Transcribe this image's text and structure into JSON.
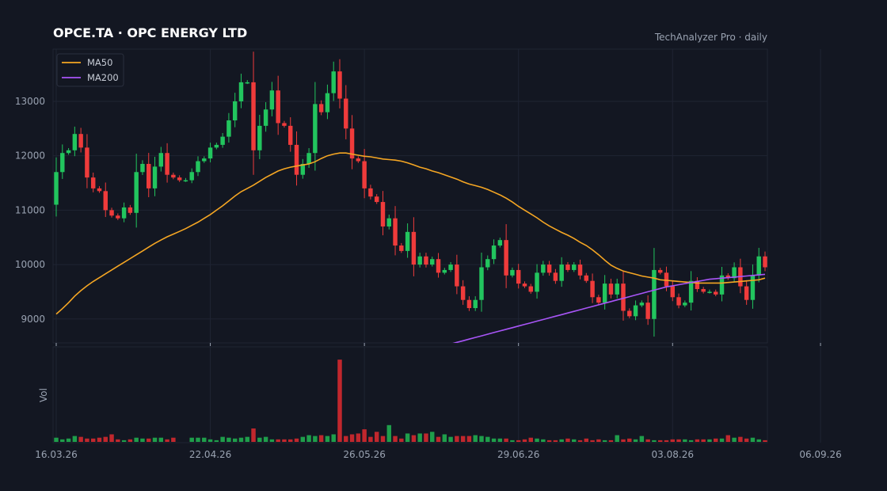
{
  "header": {
    "title": "OPCE.TA  ·  OPC ENERGY LTD",
    "source": "TechAnalyzer Pro · daily"
  },
  "colors": {
    "background": "#131722",
    "up": "#22c55e",
    "down": "#ef3b3b",
    "ma50": "#f5a623",
    "ma200": "#a855f7",
    "grid": "#1f2433",
    "text": "#9aa3b2"
  },
  "chart_data": {
    "type": "candlestick",
    "grid": true,
    "legend_position": "top-left",
    "ylim": [
      8560,
      13960
    ],
    "yticks": [
      9000,
      10000,
      11000,
      12000,
      13000
    ],
    "volume_ylabel": "Vol",
    "xtick_labels": [
      "16.03.26",
      "22.04.26",
      "26.05.26",
      "29.06.26",
      "03.08.26",
      "06.09.26"
    ],
    "xtick_index": [
      0,
      25,
      50,
      75,
      100,
      124
    ],
    "legend": [
      {
        "name": "MA50",
        "color": "#f5a623"
      },
      {
        "name": "MA200",
        "color": "#a855f7"
      }
    ],
    "close": [
      11700,
      12050,
      12100,
      12400,
      12150,
      11600,
      11400,
      11350,
      11000,
      10900,
      10850,
      11050,
      10950,
      11700,
      11850,
      11400,
      11800,
      12050,
      11650,
      11600,
      11550,
      11550,
      11700,
      11900,
      11950,
      12150,
      12200,
      12350,
      12650,
      13000,
      13350,
      13350,
      12100,
      12550,
      12850,
      13200,
      12600,
      12550,
      12200,
      11650,
      11850,
      12050,
      12950,
      12800,
      13150,
      13550,
      13050,
      12500,
      11950,
      11900,
      11400,
      11250,
      11150,
      10700,
      10850,
      10350,
      10250,
      10600,
      10000,
      10150,
      10000,
      10100,
      9850,
      9900,
      10000,
      9600,
      9350,
      9200,
      9350,
      9950,
      10100,
      10350,
      10450,
      9800,
      9900,
      9650,
      9600,
      9500,
      9850,
      10000,
      9850,
      9700,
      10000,
      9900,
      10000,
      9800,
      9700,
      9400,
      9300,
      9650,
      9450,
      9650,
      9150,
      9050,
      9250,
      9300,
      9000,
      9900,
      9850,
      9600,
      9400,
      9250,
      9300,
      9700,
      9550,
      9500,
      9500,
      9450,
      9800,
      9750,
      9950,
      9600,
      9350,
      9800,
      10150,
      9950
    ],
    "ma50": [
      9090,
      9190,
      9300,
      9420,
      9520,
      9610,
      9690,
      9760,
      9830,
      9900,
      9970,
      10040,
      10110,
      10180,
      10250,
      10320,
      10390,
      10450,
      10510,
      10560,
      10610,
      10660,
      10720,
      10780,
      10850,
      10920,
      11000,
      11080,
      11170,
      11260,
      11340,
      11400,
      11460,
      11530,
      11600,
      11660,
      11720,
      11760,
      11790,
      11810,
      11830,
      11850,
      11890,
      11950,
      12000,
      12030,
      12050,
      12050,
      12030,
      12010,
      11990,
      11980,
      11960,
      11940,
      11930,
      11920,
      11900,
      11870,
      11830,
      11790,
      11760,
      11720,
      11690,
      11650,
      11610,
      11570,
      11520,
      11480,
      11450,
      11420,
      11380,
      11330,
      11280,
      11220,
      11150,
      11070,
      11000,
      10930,
      10860,
      10780,
      10710,
      10650,
      10590,
      10540,
      10480,
      10410,
      10350,
      10270,
      10180,
      10080,
      9990,
      9930,
      9880,
      9850,
      9820,
      9790,
      9770,
      9750,
      9720,
      9710,
      9700,
      9690,
      9680,
      9670,
      9660,
      9660,
      9660,
      9660,
      9660,
      9670,
      9680,
      9690,
      9700,
      9710,
      9720,
      9750
    ],
    "ma200": [
      null,
      null,
      null,
      null,
      null,
      null,
      null,
      null,
      null,
      null,
      null,
      null,
      null,
      null,
      null,
      null,
      null,
      null,
      null,
      null,
      null,
      null,
      null,
      null,
      null,
      null,
      null,
      null,
      null,
      null,
      null,
      null,
      null,
      null,
      null,
      null,
      null,
      null,
      null,
      null,
      null,
      null,
      null,
      null,
      null,
      null,
      null,
      null,
      null,
      null,
      null,
      null,
      null,
      null,
      null,
      null,
      null,
      null,
      null,
      null,
      null,
      null,
      null,
      null,
      8540,
      8570,
      8600,
      8630,
      8660,
      8690,
      8720,
      8750,
      8780,
      8810,
      8840,
      8870,
      8900,
      8930,
      8960,
      8990,
      9020,
      9050,
      9080,
      9110,
      9140,
      9170,
      9200,
      9230,
      9260,
      9290,
      9320,
      9350,
      9380,
      9410,
      9440,
      9470,
      9500,
      9530,
      9560,
      9590,
      9610,
      9630,
      9650,
      9670,
      9690,
      9710,
      9730,
      9740,
      9750,
      9760,
      9770,
      9780,
      9790,
      9800,
      9810,
      9820
    ],
    "volume": [
      0.05,
      0.03,
      0.04,
      0.07,
      0.06,
      0.04,
      0.04,
      0.05,
      0.06,
      0.09,
      0.03,
      0.02,
      0.03,
      0.05,
      0.04,
      0.04,
      0.05,
      0.05,
      0.03,
      0.05,
      null,
      null,
      0.05,
      0.05,
      0.05,
      0.03,
      0.02,
      0.06,
      0.05,
      0.04,
      0.05,
      0.06,
      0.16,
      0.05,
      0.06,
      0.03,
      0.03,
      0.03,
      0.03,
      0.04,
      0.06,
      0.08,
      0.07,
      0.08,
      0.07,
      0.09,
      0.98,
      0.07,
      0.09,
      0.1,
      0.15,
      0.06,
      0.12,
      0.07,
      0.2,
      0.07,
      0.04,
      0.1,
      0.08,
      0.1,
      0.1,
      0.12,
      0.06,
      0.09,
      0.06,
      0.07,
      0.07,
      0.07,
      0.08,
      0.07,
      0.06,
      0.04,
      0.04,
      0.04,
      0.02,
      0.02,
      0.03,
      0.05,
      0.04,
      0.03,
      0.02,
      0.02,
      0.03,
      0.04,
      0.03,
      0.02,
      0.04,
      0.02,
      0.03,
      0.02,
      0.02,
      0.08,
      0.03,
      0.04,
      0.03,
      0.07,
      0.03,
      0.02,
      0.02,
      0.02,
      0.03,
      0.03,
      0.03,
      0.02,
      0.03,
      0.03,
      0.03,
      0.04,
      0.04,
      0.08,
      0.05,
      0.06,
      0.04,
      0.05,
      0.03,
      0.02
    ]
  }
}
